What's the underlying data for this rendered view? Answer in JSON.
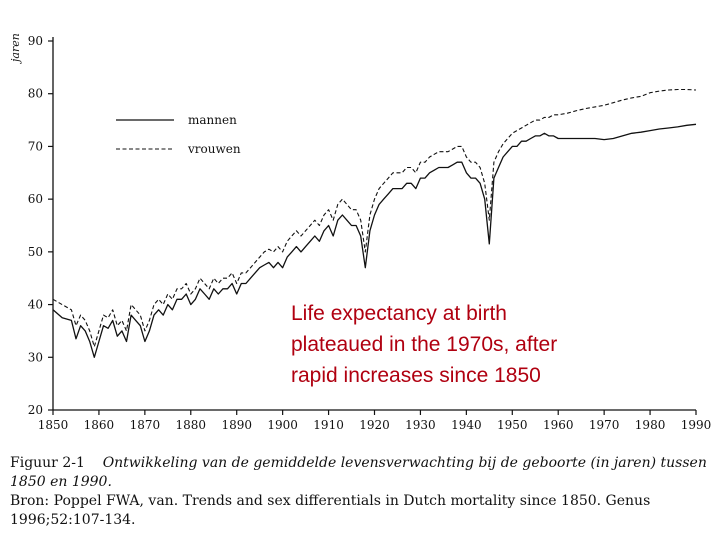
{
  "chart_data": {
    "type": "line",
    "title": "",
    "xlabel": "",
    "ylabel": "jaren",
    "xlim": [
      1850,
      1990
    ],
    "ylim": [
      20,
      90
    ],
    "x_ticks": [
      1850,
      1860,
      1870,
      1880,
      1890,
      1900,
      1910,
      1920,
      1930,
      1940,
      1950,
      1960,
      1970,
      1980,
      1990
    ],
    "y_ticks": [
      20,
      30,
      40,
      50,
      60,
      70,
      80,
      90
    ],
    "legend": {
      "position": "top-left"
    },
    "series": [
      {
        "name": "mannen",
        "style": "solid",
        "points": [
          [
            1850,
            39
          ],
          [
            1852,
            37.5
          ],
          [
            1854,
            37
          ],
          [
            1855,
            33.5
          ],
          [
            1856,
            36
          ],
          [
            1857,
            35
          ],
          [
            1858,
            33
          ],
          [
            1859,
            30
          ],
          [
            1860,
            33
          ],
          [
            1861,
            36
          ],
          [
            1862,
            35.5
          ],
          [
            1863,
            37
          ],
          [
            1864,
            34
          ],
          [
            1865,
            35
          ],
          [
            1866,
            33
          ],
          [
            1867,
            38
          ],
          [
            1868,
            37
          ],
          [
            1869,
            36
          ],
          [
            1870,
            33
          ],
          [
            1871,
            35
          ],
          [
            1872,
            38
          ],
          [
            1873,
            39
          ],
          [
            1874,
            38
          ],
          [
            1875,
            40
          ],
          [
            1876,
            39
          ],
          [
            1877,
            41
          ],
          [
            1878,
            41
          ],
          [
            1879,
            42
          ],
          [
            1880,
            40
          ],
          [
            1881,
            41
          ],
          [
            1882,
            43
          ],
          [
            1883,
            42
          ],
          [
            1884,
            41
          ],
          [
            1885,
            43
          ],
          [
            1886,
            42
          ],
          [
            1887,
            43
          ],
          [
            1888,
            43
          ],
          [
            1889,
            44
          ],
          [
            1890,
            42
          ],
          [
            1891,
            44
          ],
          [
            1892,
            44
          ],
          [
            1893,
            45
          ],
          [
            1894,
            46
          ],
          [
            1895,
            47
          ],
          [
            1896,
            47.5
          ],
          [
            1897,
            48
          ],
          [
            1898,
            47
          ],
          [
            1899,
            48
          ],
          [
            1900,
            47
          ],
          [
            1901,
            49
          ],
          [
            1902,
            50
          ],
          [
            1903,
            51
          ],
          [
            1904,
            50
          ],
          [
            1905,
            51
          ],
          [
            1906,
            52
          ],
          [
            1907,
            53
          ],
          [
            1908,
            52
          ],
          [
            1909,
            54
          ],
          [
            1910,
            55
          ],
          [
            1911,
            53
          ],
          [
            1912,
            56
          ],
          [
            1913,
            57
          ],
          [
            1914,
            56
          ],
          [
            1915,
            55
          ],
          [
            1916,
            55
          ],
          [
            1917,
            53
          ],
          [
            1918,
            47
          ],
          [
            1919,
            54
          ],
          [
            1920,
            57
          ],
          [
            1921,
            59
          ],
          [
            1922,
            60
          ],
          [
            1923,
            61
          ],
          [
            1924,
            62
          ],
          [
            1925,
            62
          ],
          [
            1926,
            62
          ],
          [
            1927,
            63
          ],
          [
            1928,
            63
          ],
          [
            1929,
            62
          ],
          [
            1930,
            64
          ],
          [
            1931,
            64
          ],
          [
            1932,
            65
          ],
          [
            1933,
            65.5
          ],
          [
            1934,
            66
          ],
          [
            1935,
            66
          ],
          [
            1936,
            66
          ],
          [
            1937,
            66.5
          ],
          [
            1938,
            67
          ],
          [
            1939,
            67
          ],
          [
            1940,
            65
          ],
          [
            1941,
            64
          ],
          [
            1942,
            64
          ],
          [
            1943,
            63
          ],
          [
            1944,
            60
          ],
          [
            1945,
            51.5
          ],
          [
            1946,
            64
          ],
          [
            1947,
            66
          ],
          [
            1948,
            68
          ],
          [
            1949,
            69
          ],
          [
            1950,
            70
          ],
          [
            1951,
            70
          ],
          [
            1952,
            71
          ],
          [
            1953,
            71
          ],
          [
            1954,
            71.5
          ],
          [
            1955,
            72
          ],
          [
            1956,
            72
          ],
          [
            1957,
            72.5
          ],
          [
            1958,
            72
          ],
          [
            1959,
            72
          ],
          [
            1960,
            71.5
          ],
          [
            1962,
            71.5
          ],
          [
            1964,
            71.5
          ],
          [
            1966,
            71.5
          ],
          [
            1968,
            71.5
          ],
          [
            1970,
            71.3
          ],
          [
            1972,
            71.5
          ],
          [
            1974,
            72
          ],
          [
            1976,
            72.5
          ],
          [
            1978,
            72.7
          ],
          [
            1980,
            73
          ],
          [
            1982,
            73.3
          ],
          [
            1984,
            73.5
          ],
          [
            1986,
            73.7
          ],
          [
            1988,
            74
          ],
          [
            1990,
            74.2
          ]
        ]
      },
      {
        "name": "vrouwen",
        "style": "dashed",
        "points": [
          [
            1850,
            41
          ],
          [
            1852,
            40
          ],
          [
            1854,
            39
          ],
          [
            1855,
            36
          ],
          [
            1856,
            38
          ],
          [
            1857,
            37
          ],
          [
            1858,
            35
          ],
          [
            1859,
            32
          ],
          [
            1860,
            35
          ],
          [
            1861,
            38
          ],
          [
            1862,
            37.5
          ],
          [
            1863,
            39
          ],
          [
            1864,
            36
          ],
          [
            1865,
            37
          ],
          [
            1866,
            35
          ],
          [
            1867,
            40
          ],
          [
            1868,
            39
          ],
          [
            1869,
            38
          ],
          [
            1870,
            35
          ],
          [
            1871,
            37
          ],
          [
            1872,
            40
          ],
          [
            1873,
            41
          ],
          [
            1874,
            40
          ],
          [
            1875,
            42
          ],
          [
            1876,
            41
          ],
          [
            1877,
            43
          ],
          [
            1878,
            43
          ],
          [
            1879,
            44
          ],
          [
            1880,
            42
          ],
          [
            1881,
            43
          ],
          [
            1882,
            45
          ],
          [
            1883,
            44
          ],
          [
            1884,
            43
          ],
          [
            1885,
            45
          ],
          [
            1886,
            44
          ],
          [
            1887,
            45
          ],
          [
            1888,
            45
          ],
          [
            1889,
            46
          ],
          [
            1890,
            44
          ],
          [
            1891,
            46
          ],
          [
            1892,
            46
          ],
          [
            1893,
            47
          ],
          [
            1894,
            48
          ],
          [
            1895,
            49
          ],
          [
            1896,
            50
          ],
          [
            1897,
            50.5
          ],
          [
            1898,
            50
          ],
          [
            1899,
            51
          ],
          [
            1900,
            50
          ],
          [
            1901,
            52
          ],
          [
            1902,
            53
          ],
          [
            1903,
            54
          ],
          [
            1904,
            53
          ],
          [
            1905,
            54
          ],
          [
            1906,
            55
          ],
          [
            1907,
            56
          ],
          [
            1908,
            55
          ],
          [
            1909,
            57
          ],
          [
            1910,
            58
          ],
          [
            1911,
            56
          ],
          [
            1912,
            59
          ],
          [
            1913,
            60
          ],
          [
            1914,
            59
          ],
          [
            1915,
            58
          ],
          [
            1916,
            58
          ],
          [
            1917,
            56
          ],
          [
            1918,
            50
          ],
          [
            1919,
            57
          ],
          [
            1920,
            60
          ],
          [
            1921,
            62
          ],
          [
            1922,
            63
          ],
          [
            1923,
            64
          ],
          [
            1924,
            65
          ],
          [
            1925,
            65
          ],
          [
            1926,
            65
          ],
          [
            1927,
            66
          ],
          [
            1928,
            66
          ],
          [
            1929,
            65
          ],
          [
            1930,
            67
          ],
          [
            1931,
            67
          ],
          [
            1932,
            68
          ],
          [
            1933,
            68.5
          ],
          [
            1934,
            69
          ],
          [
            1935,
            69
          ],
          [
            1936,
            69
          ],
          [
            1937,
            69.5
          ],
          [
            1938,
            70
          ],
          [
            1939,
            70
          ],
          [
            1940,
            68
          ],
          [
            1941,
            67
          ],
          [
            1942,
            67
          ],
          [
            1943,
            66
          ],
          [
            1944,
            63
          ],
          [
            1945,
            56
          ],
          [
            1946,
            67
          ],
          [
            1947,
            69
          ],
          [
            1948,
            70.5
          ],
          [
            1949,
            71.5
          ],
          [
            1950,
            72.5
          ],
          [
            1951,
            73
          ],
          [
            1952,
            73.5
          ],
          [
            1953,
            74
          ],
          [
            1954,
            74.5
          ],
          [
            1955,
            75
          ],
          [
            1956,
            75
          ],
          [
            1957,
            75.5
          ],
          [
            1958,
            75.5
          ],
          [
            1959,
            76
          ],
          [
            1960,
            76
          ],
          [
            1962,
            76.3
          ],
          [
            1964,
            76.8
          ],
          [
            1966,
            77.2
          ],
          [
            1968,
            77.5
          ],
          [
            1970,
            77.8
          ],
          [
            1972,
            78.3
          ],
          [
            1974,
            78.8
          ],
          [
            1976,
            79.2
          ],
          [
            1978,
            79.5
          ],
          [
            1980,
            80.2
          ],
          [
            1982,
            80.5
          ],
          [
            1984,
            80.7
          ],
          [
            1986,
            80.8
          ],
          [
            1988,
            80.8
          ],
          [
            1990,
            80.7
          ]
        ]
      }
    ]
  },
  "overlay": {
    "lines": [
      "Life expectancy at birth",
      "plateaued in the 1970s, after",
      "rapid increases since 1850"
    ]
  },
  "caption": {
    "figure_label": "Figuur 2-1",
    "text": "Ontwikkeling van de gemiddelde levensverwachting bij de geboorte (in jaren) tussen 1850 en 1990.",
    "source": "Bron: Poppel FWA, van. Trends and sex differentials in Dutch mortality since 1850. Genus 1996;52:107-134."
  },
  "colors": {
    "line": "#111111",
    "overlay_text": "#b00010"
  }
}
